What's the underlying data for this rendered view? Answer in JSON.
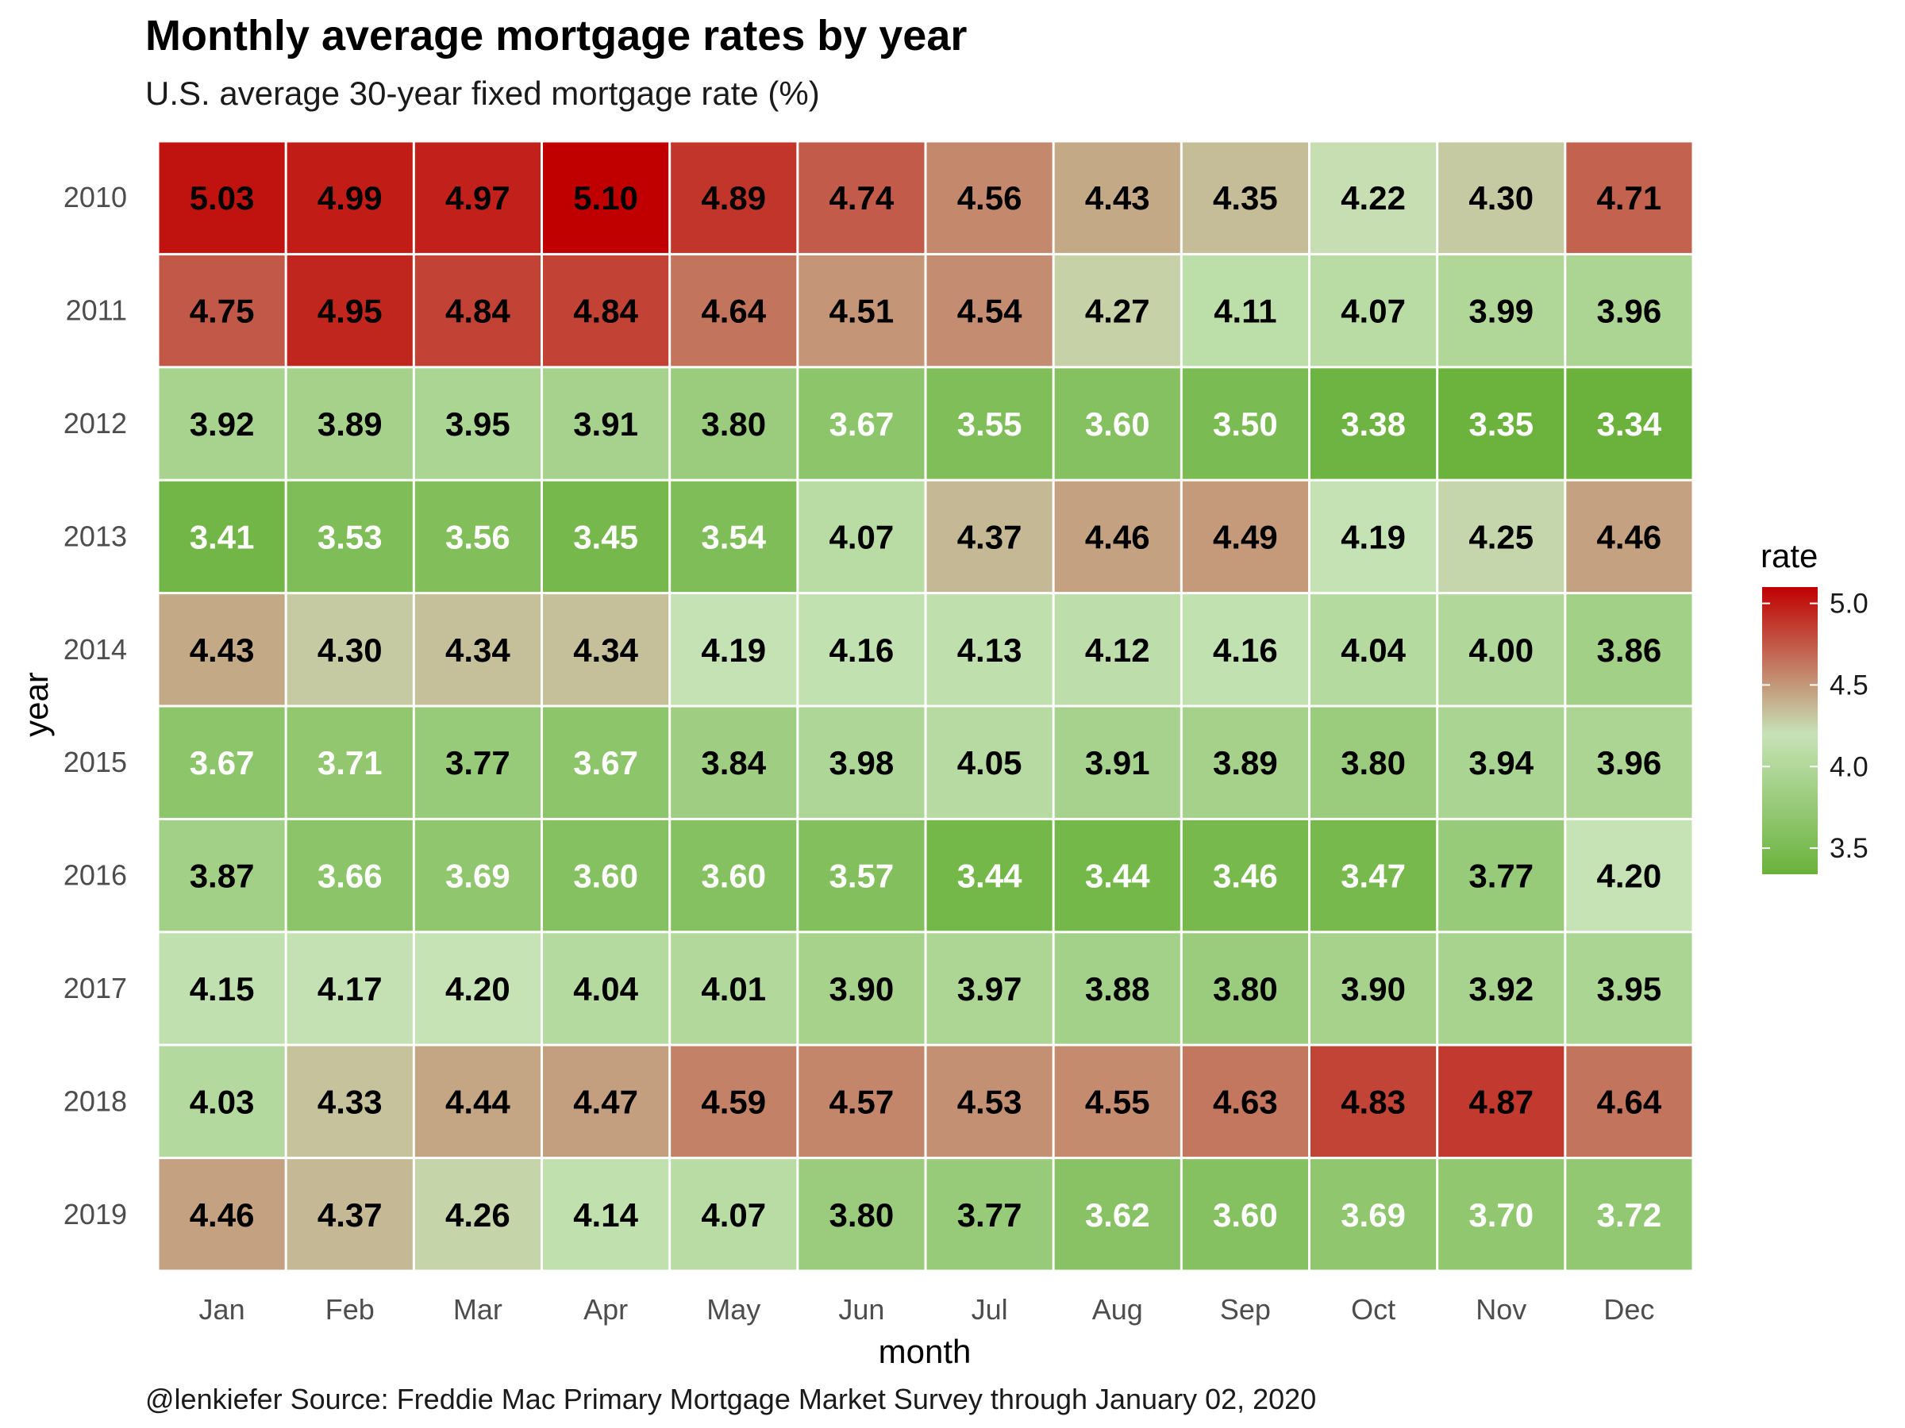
{
  "chart_data": {
    "type": "heatmap",
    "title": "Monthly average mortgage rates by year",
    "subtitle": "U.S. average 30-year fixed mortgage rate (%)",
    "caption": "@lenkiefer Source: Freddie Mac Primary Mortgage Market Survey through January 02, 2020",
    "xlabel": "month",
    "ylabel": "year",
    "x_categories": [
      "Jan",
      "Feb",
      "Mar",
      "Apr",
      "May",
      "Jun",
      "Jul",
      "Aug",
      "Sep",
      "Oct",
      "Nov",
      "Dec"
    ],
    "y_categories": [
      "2010",
      "2011",
      "2012",
      "2013",
      "2014",
      "2015",
      "2016",
      "2017",
      "2018",
      "2019"
    ],
    "values": [
      [
        "5.03",
        "4.99",
        "4.97",
        "5.10",
        "4.89",
        "4.74",
        "4.56",
        "4.43",
        "4.35",
        "4.22",
        "4.30",
        "4.71"
      ],
      [
        "4.75",
        "4.95",
        "4.84",
        "4.84",
        "4.64",
        "4.51",
        "4.54",
        "4.27",
        "4.11",
        "4.07",
        "3.99",
        "3.96"
      ],
      [
        "3.92",
        "3.89",
        "3.95",
        "3.91",
        "3.80",
        "3.67",
        "3.55",
        "3.60",
        "3.50",
        "3.38",
        "3.35",
        "3.34"
      ],
      [
        "3.41",
        "3.53",
        "3.56",
        "3.45",
        "3.54",
        "4.07",
        "4.37",
        "4.46",
        "4.49",
        "4.19",
        "4.25",
        "4.46"
      ],
      [
        "4.43",
        "4.30",
        "4.34",
        "4.34",
        "4.19",
        "4.16",
        "4.13",
        "4.12",
        "4.16",
        "4.04",
        "4.00",
        "3.86"
      ],
      [
        "3.67",
        "3.71",
        "3.77",
        "3.67",
        "3.84",
        "3.98",
        "4.05",
        "3.91",
        "3.89",
        "3.80",
        "3.94",
        "3.96"
      ],
      [
        "3.87",
        "3.66",
        "3.69",
        "3.60",
        "3.60",
        "3.57",
        "3.44",
        "3.44",
        "3.46",
        "3.47",
        "3.77",
        "4.20"
      ],
      [
        "4.15",
        "4.17",
        "4.20",
        "4.04",
        "4.01",
        "3.90",
        "3.97",
        "3.88",
        "3.80",
        "3.90",
        "3.92",
        "3.95"
      ],
      [
        "4.03",
        "4.33",
        "4.44",
        "4.47",
        "4.59",
        "4.57",
        "4.53",
        "4.55",
        "4.63",
        "4.83",
        "4.87",
        "4.64"
      ],
      [
        "4.46",
        "4.37",
        "4.26",
        "4.14",
        "4.07",
        "3.80",
        "3.77",
        "3.62",
        "3.60",
        "3.69",
        "3.70",
        "3.72"
      ]
    ],
    "label_colors": [
      [
        "#000000",
        "#000000",
        "#000000",
        "#000000",
        "#000000",
        "#000000",
        "#000000",
        "#000000",
        "#000000",
        "#000000",
        "#000000",
        "#000000"
      ],
      [
        "#000000",
        "#000000",
        "#000000",
        "#000000",
        "#000000",
        "#000000",
        "#000000",
        "#000000",
        "#000000",
        "#000000",
        "#000000",
        "#000000"
      ],
      [
        "#000000",
        "#000000",
        "#000000",
        "#000000",
        "#000000",
        "#ffffff",
        "#ffffff",
        "#ffffff",
        "#ffffff",
        "#ffffff",
        "#ffffff",
        "#ffffff"
      ],
      [
        "#ffffff",
        "#ffffff",
        "#ffffff",
        "#ffffff",
        "#ffffff",
        "#000000",
        "#000000",
        "#000000",
        "#000000",
        "#000000",
        "#000000",
        "#000000"
      ],
      [
        "#000000",
        "#000000",
        "#000000",
        "#000000",
        "#000000",
        "#000000",
        "#000000",
        "#000000",
        "#000000",
        "#000000",
        "#000000",
        "#000000"
      ],
      [
        "#ffffff",
        "#ffffff",
        "#000000",
        "#ffffff",
        "#000000",
        "#000000",
        "#000000",
        "#000000",
        "#000000",
        "#000000",
        "#000000",
        "#000000"
      ],
      [
        "#000000",
        "#ffffff",
        "#ffffff",
        "#ffffff",
        "#ffffff",
        "#ffffff",
        "#ffffff",
        "#ffffff",
        "#ffffff",
        "#ffffff",
        "#000000",
        "#000000"
      ],
      [
        "#000000",
        "#000000",
        "#000000",
        "#000000",
        "#000000",
        "#000000",
        "#000000",
        "#000000",
        "#000000",
        "#000000",
        "#000000",
        "#000000"
      ],
      [
        "#000000",
        "#000000",
        "#000000",
        "#000000",
        "#000000",
        "#000000",
        "#000000",
        "#000000",
        "#000000",
        "#000000",
        "#000000",
        "#000000"
      ],
      [
        "#000000",
        "#000000",
        "#000000",
        "#000000",
        "#000000",
        "#000000",
        "#000000",
        "#ffffff",
        "#ffffff",
        "#ffffff",
        "#ffffff",
        "#ffffff"
      ]
    ],
    "color_scale": {
      "low_color": "#6AB23C",
      "mid_color": "#C6E3B6",
      "high_color": "#C00000",
      "midpoint": 4.2,
      "min": 3.34,
      "max": 5.1
    },
    "legend": {
      "title": "rate",
      "ticks": [
        "5.0",
        "4.5",
        "4.0",
        "3.5"
      ],
      "position": "right"
    }
  }
}
